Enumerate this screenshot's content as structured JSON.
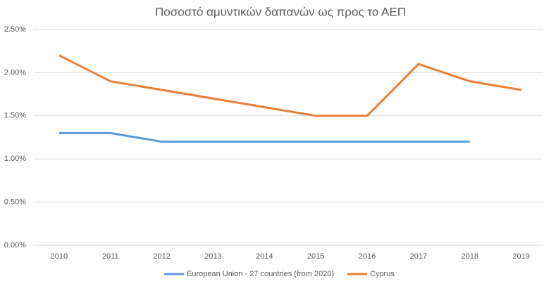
{
  "chart_data": {
    "type": "line",
    "title": "Ποσοστό αμυντικών δαπανών ως προς το ΑΕΠ",
    "categories": [
      "2010",
      "2011",
      "2012",
      "2013",
      "2014",
      "2015",
      "2016",
      "2017",
      "2018",
      "2019"
    ],
    "series": [
      {
        "name": "European Union - 27 countries (from 2020)",
        "color": "#5b9bd5",
        "values": [
          1.3,
          1.3,
          1.2,
          1.2,
          1.2,
          1.2,
          1.2,
          1.2,
          1.2,
          null
        ]
      },
      {
        "name": "Cyprus",
        "color": "#ed7d31",
        "values": [
          2.2,
          1.9,
          1.8,
          1.7,
          1.6,
          1.5,
          1.5,
          2.1,
          1.9,
          1.8
        ]
      }
    ],
    "ylim": [
      0,
      2.5
    ],
    "yticks": [
      {
        "value": 0,
        "label": "0.00%"
      },
      {
        "value": 0.5,
        "label": "0.50%"
      },
      {
        "value": 1,
        "label": "1.00%"
      },
      {
        "value": 1.5,
        "label": "1.50%"
      },
      {
        "value": 2,
        "label": "2.00%"
      },
      {
        "value": 2.5,
        "label": "2.50%"
      }
    ],
    "grid": true,
    "legend": "bottom"
  }
}
